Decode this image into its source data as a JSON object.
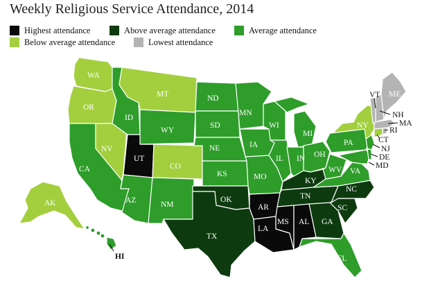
{
  "title": "Weekly Religious Service Attendance, 2014",
  "colors": {
    "highest": "#0a0a0a",
    "above": "#0d3b0f",
    "average": "#2e9d2a",
    "below": "#a3cf3e",
    "lowest": "#b4b4b4",
    "border": "#ffffff"
  },
  "legend": [
    {
      "key": "highest",
      "label": "Highest attendance"
    },
    {
      "key": "above",
      "label": "Above average attendance"
    },
    {
      "key": "average",
      "label": "Average attendance"
    },
    {
      "key": "below",
      "label": "Below average attendance"
    },
    {
      "key": "lowest",
      "label": "Lowest attendance"
    }
  ],
  "states": [
    {
      "abbr": "WA",
      "category": "below"
    },
    {
      "abbr": "OR",
      "category": "below"
    },
    {
      "abbr": "CA",
      "category": "average"
    },
    {
      "abbr": "NV",
      "category": "below"
    },
    {
      "abbr": "ID",
      "category": "average"
    },
    {
      "abbr": "MT",
      "category": "below"
    },
    {
      "abbr": "WY",
      "category": "average"
    },
    {
      "abbr": "UT",
      "category": "highest"
    },
    {
      "abbr": "CO",
      "category": "below"
    },
    {
      "abbr": "AZ",
      "category": "average"
    },
    {
      "abbr": "NM",
      "category": "average"
    },
    {
      "abbr": "ND",
      "category": "average"
    },
    {
      "abbr": "SD",
      "category": "average"
    },
    {
      "abbr": "NE",
      "category": "average"
    },
    {
      "abbr": "KS",
      "category": "average"
    },
    {
      "abbr": "OK",
      "category": "above"
    },
    {
      "abbr": "TX",
      "category": "above"
    },
    {
      "abbr": "MN",
      "category": "average"
    },
    {
      "abbr": "IA",
      "category": "average"
    },
    {
      "abbr": "MO",
      "category": "average"
    },
    {
      "abbr": "AR",
      "category": "highest"
    },
    {
      "abbr": "LA",
      "category": "highest"
    },
    {
      "abbr": "WI",
      "category": "average"
    },
    {
      "abbr": "IL",
      "category": "average"
    },
    {
      "abbr": "MI",
      "category": "average"
    },
    {
      "abbr": "IN",
      "category": "average"
    },
    {
      "abbr": "OH",
      "category": "average"
    },
    {
      "abbr": "KY",
      "category": "above"
    },
    {
      "abbr": "TN",
      "category": "above"
    },
    {
      "abbr": "MS",
      "category": "highest"
    },
    {
      "abbr": "AL",
      "category": "highest"
    },
    {
      "abbr": "GA",
      "category": "above"
    },
    {
      "abbr": "FL",
      "category": "average"
    },
    {
      "abbr": "SC",
      "category": "above"
    },
    {
      "abbr": "NC",
      "category": "above"
    },
    {
      "abbr": "VA",
      "category": "average"
    },
    {
      "abbr": "WV",
      "category": "average"
    },
    {
      "abbr": "PA",
      "category": "average"
    },
    {
      "abbr": "NY",
      "category": "below"
    },
    {
      "abbr": "VT",
      "category": "lowest"
    },
    {
      "abbr": "NH",
      "category": "lowest"
    },
    {
      "abbr": "ME",
      "category": "lowest"
    },
    {
      "abbr": "MA",
      "category": "lowest"
    },
    {
      "abbr": "RI",
      "category": "lowest"
    },
    {
      "abbr": "CT",
      "category": "below"
    },
    {
      "abbr": "NJ",
      "category": "average"
    },
    {
      "abbr": "DE",
      "category": "average"
    },
    {
      "abbr": "MD",
      "category": "average"
    },
    {
      "abbr": "AK",
      "category": "below"
    },
    {
      "abbr": "HI",
      "category": "average"
    }
  ]
}
